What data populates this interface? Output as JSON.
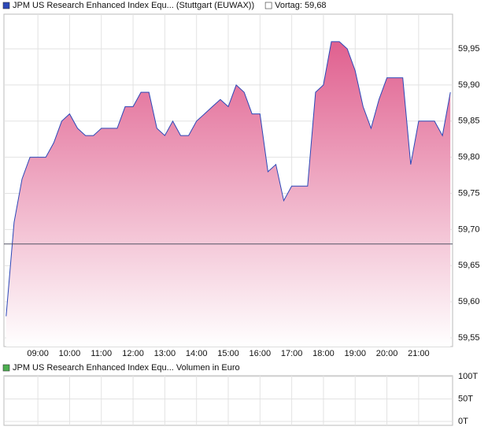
{
  "chart_data": [
    {
      "type": "area",
      "x": [
        8.0,
        8.25,
        8.5,
        8.75,
        9.25,
        9.5,
        9.75,
        10.0,
        10.25,
        10.5,
        10.75,
        11.0,
        11.5,
        11.75,
        12.0,
        12.25,
        12.5,
        12.75,
        13.0,
        13.25,
        13.5,
        13.75,
        14.0,
        14.25,
        14.5,
        14.75,
        15.0,
        15.25,
        15.5,
        15.75,
        16.0,
        16.25,
        16.5,
        16.75,
        17.0,
        17.5,
        17.75,
        18.0,
        18.25,
        18.5,
        18.75,
        19.0,
        19.25,
        19.5,
        19.75,
        20.0,
        20.5,
        20.75,
        21.0,
        21.5,
        21.75,
        22.0
      ],
      "series": [
        {
          "name": "JPM US Research Enhanced Index Equ... (Stuttgart (EUWAX))",
          "color": "#2c48b8",
          "values": [
            59.58,
            59.71,
            59.77,
            59.8,
            59.8,
            59.82,
            59.85,
            59.86,
            59.84,
            59.83,
            59.83,
            59.84,
            59.84,
            59.87,
            59.87,
            59.89,
            59.89,
            59.84,
            59.83,
            59.85,
            59.83,
            59.83,
            59.85,
            59.86,
            59.87,
            59.88,
            59.87,
            59.9,
            59.89,
            59.86,
            59.86,
            59.78,
            59.79,
            59.74,
            59.76,
            59.76,
            59.89,
            59.9,
            59.96,
            59.96,
            59.95,
            59.92,
            59.87,
            59.84,
            59.88,
            59.91,
            59.91,
            59.79,
            59.85,
            59.85,
            59.83,
            59.89
          ]
        }
      ],
      "fill_color": "#e0608f",
      "previous_close": {
        "value": 59.68,
        "label": "Vortag: 59,68"
      },
      "xlim": [
        7.93,
        22.07
      ],
      "xticks": [
        {
          "value": 9,
          "label": "09:00"
        },
        {
          "value": 10,
          "label": "10:00"
        },
        {
          "value": 11,
          "label": "11:00"
        },
        {
          "value": 12,
          "label": "12:00"
        },
        {
          "value": 13,
          "label": "13:00"
        },
        {
          "value": 14,
          "label": "14:00"
        },
        {
          "value": 15,
          "label": "15:00"
        },
        {
          "value": 16,
          "label": "16:00"
        },
        {
          "value": 17,
          "label": "17:00"
        },
        {
          "value": 18,
          "label": "18:00"
        },
        {
          "value": 19,
          "label": "19:00"
        },
        {
          "value": 20,
          "label": "20:00"
        },
        {
          "value": 21,
          "label": "21:00"
        }
      ],
      "ylim": [
        59.538,
        59.998
      ],
      "yticks": [
        {
          "value": 59.55,
          "label": "59,55"
        },
        {
          "value": 59.6,
          "label": "59,60"
        },
        {
          "value": 59.65,
          "label": "59,65"
        },
        {
          "value": 59.7,
          "label": "59,70"
        },
        {
          "value": 59.75,
          "label": "59,75"
        },
        {
          "value": 59.8,
          "label": "59,80"
        },
        {
          "value": 59.85,
          "label": "59,85"
        },
        {
          "value": 59.9,
          "label": "59,90"
        },
        {
          "value": 59.95,
          "label": "59,95"
        }
      ],
      "grid": true
    },
    {
      "type": "bar",
      "series": [
        {
          "name": "JPM US Research Enhanced Index Equ... Volumen in Euro",
          "color": "#4caf50",
          "values": []
        }
      ],
      "xlim": [
        7.93,
        22.07
      ],
      "xticks": [
        9,
        10,
        11,
        12,
        13,
        14,
        15,
        16,
        17,
        18,
        19,
        20,
        21
      ],
      "ylim": [
        -8800,
        101800
      ],
      "yticks": [
        {
          "value": 0,
          "label": "0T"
        },
        {
          "value": 50000,
          "label": "50T"
        },
        {
          "value": 100000,
          "label": "100T"
        }
      ],
      "grid": true
    }
  ]
}
